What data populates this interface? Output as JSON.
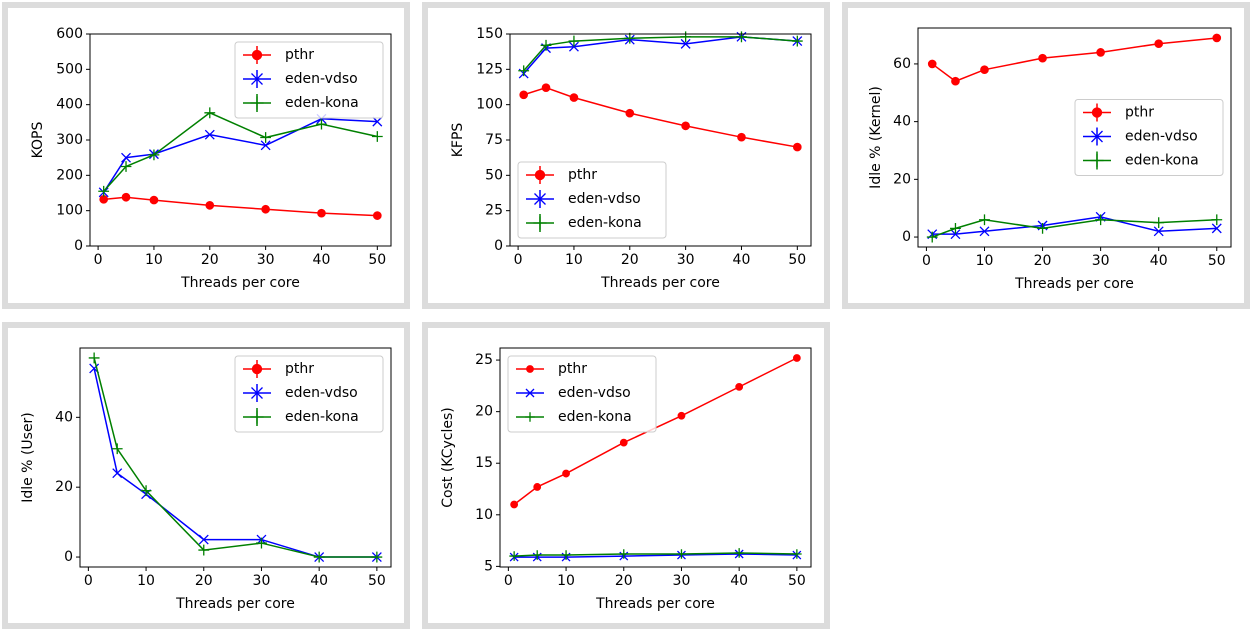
{
  "chart_data": [
    {
      "type": "line",
      "xlabel": "Threads per core",
      "ylabel": "KOPS",
      "x": [
        1,
        5,
        10,
        20,
        30,
        40,
        50
      ],
      "xlim": [
        -1.45,
        52.45
      ],
      "xticks": [
        0,
        10,
        20,
        30,
        40,
        50
      ],
      "ylim": [
        0,
        600
      ],
      "yticks": [
        0,
        100,
        200,
        300,
        400,
        500,
        600
      ],
      "legend": "upper right",
      "series": [
        {
          "name": "pthr",
          "color": "#ff0000",
          "marker": "o",
          "values": [
            132,
            138,
            130,
            115,
            104,
            93,
            86
          ]
        },
        {
          "name": "eden-vdso",
          "color": "#0000ff",
          "marker": "x",
          "values": [
            152,
            250,
            260,
            315,
            285,
            360,
            352
          ]
        },
        {
          "name": "eden-kona",
          "color": "#008000",
          "marker": "+",
          "values": [
            155,
            225,
            258,
            377,
            307,
            345,
            310
          ]
        }
      ]
    },
    {
      "type": "line",
      "xlabel": "Threads per core",
      "ylabel": "KFPS",
      "x": [
        1,
        5,
        10,
        20,
        30,
        40,
        50
      ],
      "xlim": [
        -1.45,
        52.45
      ],
      "xticks": [
        0,
        10,
        20,
        30,
        40,
        50
      ],
      "ylim": [
        0,
        150
      ],
      "yticks": [
        0,
        25,
        50,
        75,
        100,
        125,
        150
      ],
      "legend": "lower left",
      "series": [
        {
          "name": "pthr",
          "color": "#ff0000",
          "marker": "o",
          "values": [
            107,
            112,
            105,
            94,
            85,
            77,
            70
          ]
        },
        {
          "name": "eden-vdso",
          "color": "#0000ff",
          "marker": "x",
          "values": [
            122,
            140,
            141,
            146,
            143,
            148,
            145
          ]
        },
        {
          "name": "eden-kona",
          "color": "#008000",
          "marker": "+",
          "values": [
            124,
            142,
            145,
            147,
            148,
            148,
            145
          ]
        }
      ]
    },
    {
      "type": "line",
      "xlabel": "Threads per core",
      "ylabel": "Idle % (Kernel)",
      "x": [
        1,
        5,
        10,
        20,
        30,
        40,
        50
      ],
      "xlim": [
        -1.45,
        52.45
      ],
      "xticks": [
        0,
        10,
        20,
        30,
        40,
        50
      ],
      "ylim": [
        -3.45,
        72.45
      ],
      "yticks": [
        0,
        20,
        40,
        60
      ],
      "legend": "center right",
      "series": [
        {
          "name": "pthr",
          "color": "#ff0000",
          "marker": "o",
          "values": [
            60,
            54,
            58,
            62,
            64,
            67,
            69
          ]
        },
        {
          "name": "eden-vdso",
          "color": "#0000ff",
          "marker": "x",
          "values": [
            1,
            1,
            2,
            4,
            7,
            2,
            3
          ]
        },
        {
          "name": "eden-kona",
          "color": "#008000",
          "marker": "+",
          "values": [
            0,
            3,
            6,
            3,
            6,
            5,
            6
          ]
        }
      ]
    },
    {
      "type": "line",
      "xlabel": "Threads per core",
      "ylabel": "Idle % (User)",
      "x": [
        1,
        5,
        10,
        20,
        30,
        40,
        50
      ],
      "xlim": [
        -1.45,
        52.45
      ],
      "xticks": [
        0,
        10,
        20,
        30,
        40,
        50
      ],
      "ylim": [
        -2.85,
        59.85
      ],
      "yticks": [
        0,
        20,
        40
      ],
      "legend": "upper right",
      "series": [
        {
          "name": "pthr",
          "color": "#ff0000",
          "marker": "o",
          "values": [
            null,
            null,
            null,
            null,
            null,
            null,
            null
          ]
        },
        {
          "name": "eden-vdso",
          "color": "#0000ff",
          "marker": "x",
          "values": [
            54,
            24,
            18,
            5,
            5,
            0,
            0
          ]
        },
        {
          "name": "eden-kona",
          "color": "#008000",
          "marker": "+",
          "values": [
            57,
            31,
            19,
            2,
            4,
            0,
            0
          ]
        }
      ]
    },
    {
      "type": "line",
      "xlabel": "Threads per core",
      "ylabel": "Cost (KCycles)",
      "x": [
        1,
        5,
        10,
        20,
        30,
        40,
        50
      ],
      "xlim": [
        -1.45,
        52.45
      ],
      "xticks": [
        0,
        10,
        20,
        30,
        40,
        50
      ],
      "ylim": [
        4.94,
        26.17
      ],
      "yticks": [
        5,
        10,
        15,
        20,
        25
      ],
      "legend": "upper left",
      "series": [
        {
          "name": "pthr",
          "color": "#ff0000",
          "marker": "o",
          "values": [
            11,
            12.7,
            14,
            17,
            19.6,
            22.4,
            25.2
          ]
        },
        {
          "name": "eden-vdso",
          "color": "#0000ff",
          "marker": "x",
          "values": [
            5.9,
            5.9,
            5.9,
            6.0,
            6.1,
            6.2,
            6.1
          ]
        },
        {
          "name": "eden-kona",
          "color": "#008000",
          "marker": "+",
          "values": [
            6.0,
            6.1,
            6.1,
            6.2,
            6.2,
            6.3,
            6.2
          ]
        }
      ]
    }
  ]
}
